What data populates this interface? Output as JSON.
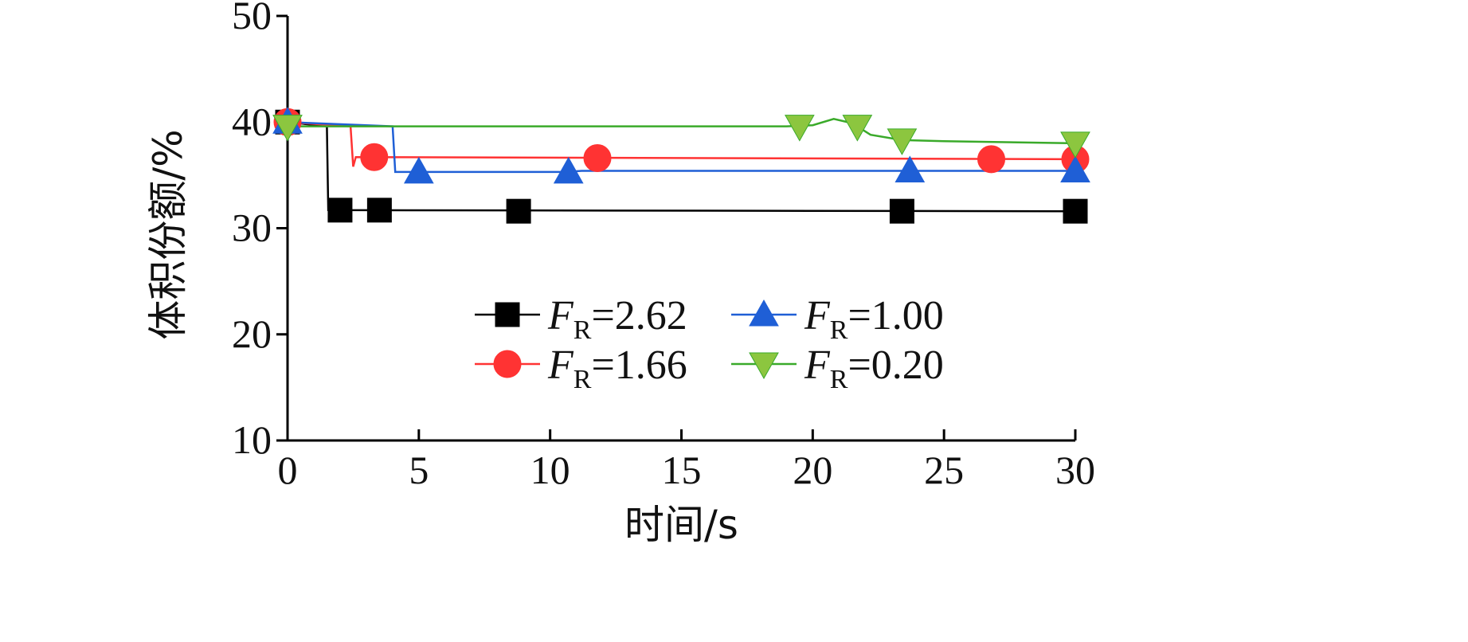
{
  "chart_data": {
    "type": "line",
    "title": "",
    "xlabel": "时间/s",
    "ylabel": "体积份额/%",
    "xlim": [
      0,
      30
    ],
    "ylim": [
      10,
      50
    ],
    "xticks": [
      0,
      5,
      10,
      15,
      20,
      25,
      30
    ],
    "yticks": [
      10,
      20,
      30,
      40,
      50
    ],
    "grid": false,
    "legend_position": "center",
    "series": [
      {
        "name_prefix": "F",
        "name_sub": "R",
        "name_suffix": "=2.62",
        "marker": "square",
        "color": "#000000",
        "fill": "#000000",
        "line": [
          [
            0,
            40.0
          ],
          [
            1.5,
            39.6
          ],
          [
            1.55,
            31.7
          ],
          [
            30,
            31.6
          ]
        ],
        "markers": [
          [
            0,
            40.0
          ],
          [
            2.0,
            31.7
          ],
          [
            3.5,
            31.7
          ],
          [
            8.8,
            31.6
          ],
          [
            23.4,
            31.6
          ],
          [
            30,
            31.6
          ]
        ]
      },
      {
        "name_prefix": "F",
        "name_sub": "R",
        "name_suffix": "=1.66",
        "marker": "circle",
        "color": "#ff3333",
        "fill": "#ff3333",
        "line": [
          [
            0,
            40.0
          ],
          [
            2.4,
            39.6
          ],
          [
            2.5,
            35.8
          ],
          [
            2.6,
            36.7
          ],
          [
            30,
            36.5
          ]
        ],
        "markers": [
          [
            0,
            40.0
          ],
          [
            3.3,
            36.7
          ],
          [
            11.8,
            36.6
          ],
          [
            26.8,
            36.5
          ],
          [
            30,
            36.5
          ]
        ]
      },
      {
        "name_prefix": "F",
        "name_sub": "R",
        "name_suffix": "=1.00",
        "marker": "triangle-up",
        "color": "#1f5fd6",
        "fill": "#1f5fd6",
        "line": [
          [
            0,
            40.0
          ],
          [
            4.0,
            39.6
          ],
          [
            4.1,
            35.3
          ],
          [
            10.6,
            35.3
          ],
          [
            11.2,
            35.4
          ],
          [
            30,
            35.4
          ]
        ],
        "markers": [
          [
            0,
            40.0
          ],
          [
            5.0,
            35.3
          ],
          [
            10.7,
            35.3
          ],
          [
            23.7,
            35.4
          ],
          [
            30,
            35.4
          ]
        ]
      },
      {
        "name_prefix": "F",
        "name_sub": "R",
        "name_suffix": "=0.20",
        "marker": "triangle-down",
        "color": "#3aaa2a",
        "fill": "#8cc63f",
        "line": [
          [
            0,
            39.6
          ],
          [
            19.0,
            39.6
          ],
          [
            20.0,
            39.7
          ],
          [
            20.8,
            40.3
          ],
          [
            21.5,
            39.9
          ],
          [
            22.2,
            38.8
          ],
          [
            23.4,
            38.3
          ],
          [
            25.0,
            38.2
          ],
          [
            30,
            38.0
          ]
        ],
        "markers": [
          [
            0,
            39.6
          ],
          [
            19.5,
            39.6
          ],
          [
            21.7,
            39.6
          ],
          [
            23.4,
            38.3
          ],
          [
            30,
            38.0
          ]
        ]
      }
    ]
  }
}
